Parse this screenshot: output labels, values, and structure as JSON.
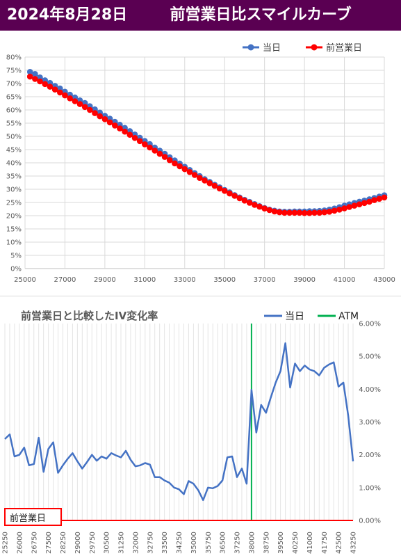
{
  "header": {
    "date": "2024年8月28日",
    "title": "前営業日比スマイルカーブ"
  },
  "colors": {
    "header_bg": "#5a0052",
    "today": "#4472c4",
    "prev": "#ff0000",
    "change": "#4472c4",
    "atm": "#00b050",
    "grid": "#d9d9d9"
  },
  "chart_data": [
    {
      "type": "line",
      "title": "",
      "legend_position": "top-right",
      "grid": true,
      "xlim": [
        25000,
        43000
      ],
      "ylim": [
        0,
        80
      ],
      "x_ticks": [
        "25000",
        "27000",
        "29000",
        "31000",
        "33000",
        "35000",
        "37000",
        "39000",
        "41000",
        "43000"
      ],
      "y_ticks": [
        "0%",
        "5%",
        "10%",
        "15%",
        "20%",
        "25%",
        "30%",
        "35%",
        "40%",
        "45%",
        "50%",
        "55%",
        "60%",
        "65%",
        "70%",
        "75%",
        "80%"
      ],
      "series": [
        {
          "name": "当日",
          "x": [
            25250,
            25500,
            25750,
            26000,
            26250,
            26500,
            26750,
            27000,
            27250,
            27500,
            27750,
            28000,
            28250,
            28500,
            28750,
            29000,
            29250,
            29500,
            29750,
            30000,
            30250,
            30500,
            30750,
            31000,
            31250,
            31500,
            31750,
            32000,
            32250,
            32500,
            32750,
            33000,
            33250,
            33500,
            33750,
            34000,
            34250,
            34500,
            34750,
            35000,
            35250,
            35500,
            35750,
            36000,
            36250,
            36500,
            36750,
            37000,
            37250,
            37500,
            37750,
            38000,
            38250,
            38500,
            38750,
            39000,
            39250,
            39500,
            39750,
            40000,
            40250,
            40500,
            40750,
            41000,
            41250,
            41500,
            41750,
            42000,
            42250,
            42500,
            42750,
            43000
          ],
          "y": [
            74.4,
            73.6,
            72.3,
            71.2,
            70.2,
            69.1,
            68.1,
            66.9,
            65.8,
            64.7,
            63.6,
            62.6,
            61.4,
            60.2,
            59.0,
            57.8,
            56.7,
            55.5,
            54.4,
            53.2,
            52.0,
            50.7,
            49.5,
            48.3,
            47.1,
            45.8,
            44.6,
            43.4,
            42.1,
            40.9,
            39.7,
            38.5,
            37.3,
            36.1,
            35.0,
            33.8,
            32.8,
            31.7,
            30.7,
            29.7,
            28.8,
            27.8,
            26.9,
            26.0,
            25.2,
            24.4,
            23.6,
            22.9,
            22.3,
            21.9,
            21.6,
            21.5,
            21.5,
            21.6,
            21.6,
            21.6,
            21.7,
            21.7,
            21.8,
            22.0,
            22.3,
            22.7,
            23.2,
            23.8,
            24.3,
            24.8,
            25.3,
            25.7,
            26.2,
            26.7,
            27.2,
            27.7
          ]
        },
        {
          "name": "前営業日",
          "x": [
            25250,
            25500,
            25750,
            26000,
            26250,
            26500,
            26750,
            27000,
            27250,
            27500,
            27750,
            28000,
            28250,
            28500,
            28750,
            29000,
            29250,
            29500,
            29750,
            30000,
            30250,
            30500,
            30750,
            31000,
            31250,
            31500,
            31750,
            32000,
            32250,
            32500,
            32750,
            33000,
            33250,
            33500,
            33750,
            34000,
            34250,
            34500,
            34750,
            35000,
            35250,
            35500,
            35750,
            36000,
            36250,
            36500,
            36750,
            37000,
            37250,
            37500,
            37750,
            38000,
            38250,
            38500,
            38750,
            39000,
            39250,
            39500,
            39750,
            40000,
            40250,
            40500,
            40750,
            41000,
            41250,
            41500,
            41750,
            42000,
            42250,
            42500,
            42750,
            43000
          ],
          "y": [
            72.6,
            71.7,
            70.8,
            69.8,
            68.8,
            67.7,
            66.6,
            65.5,
            64.4,
            63.3,
            62.2,
            61.1,
            60.0,
            58.8,
            57.6,
            56.5,
            55.3,
            54.1,
            53.0,
            51.8,
            50.6,
            49.4,
            48.2,
            47.0,
            45.8,
            44.6,
            43.4,
            42.2,
            41.0,
            39.8,
            38.7,
            37.6,
            36.5,
            35.4,
            34.3,
            33.3,
            32.3,
            31.3,
            30.3,
            29.4,
            28.4,
            27.5,
            26.6,
            25.7,
            24.9,
            24.1,
            23.4,
            22.7,
            22.1,
            21.6,
            21.3,
            21.1,
            21.1,
            21.1,
            21.1,
            21.0,
            21.0,
            21.1,
            21.1,
            21.3,
            21.5,
            21.9,
            22.3,
            22.8,
            23.3,
            23.8,
            24.3,
            24.8,
            25.3,
            25.9,
            26.4,
            26.9
          ]
        }
      ]
    },
    {
      "type": "line",
      "title": "前営業日と比較したIV変化率",
      "legend_position": "top-right",
      "grid": true,
      "ylim": [
        0,
        6
      ],
      "y_ticks": [
        "0.00%",
        "1.00%",
        "2.00%",
        "3.00%",
        "4.00%",
        "5.00%",
        "6.00%"
      ],
      "x_ticks": [
        "25250",
        "26000",
        "26750",
        "27500",
        "28250",
        "29000",
        "29750",
        "30500",
        "31250",
        "32000",
        "32750",
        "33500",
        "34250",
        "35000",
        "35750",
        "36500",
        "37250",
        "38000",
        "38750",
        "39500",
        "40250",
        "41000",
        "41750",
        "42500",
        "43250"
      ],
      "atm_strike": 38000,
      "baseline_label": "前営業日",
      "series": [
        {
          "name": "当日",
          "x": [
            25250,
            25500,
            25750,
            26000,
            26250,
            26500,
            26750,
            27000,
            27250,
            27500,
            27750,
            28000,
            28250,
            28500,
            28750,
            29000,
            29250,
            29500,
            29750,
            30000,
            30250,
            30500,
            30750,
            31000,
            31250,
            31500,
            31750,
            32000,
            32250,
            32500,
            32750,
            33000,
            33250,
            33500,
            33750,
            34000,
            34250,
            34500,
            34750,
            35000,
            35250,
            35500,
            35750,
            36000,
            36250,
            36500,
            36750,
            37000,
            37250,
            37500,
            37750,
            38000,
            38250,
            38500,
            38750,
            39000,
            39250,
            39500,
            39750,
            40000,
            40250,
            40500,
            40750,
            41000,
            41250,
            41500,
            41750,
            42000,
            42250,
            42500,
            42750,
            43000,
            43250
          ],
          "y": [
            2.48,
            2.62,
            1.95,
            2.0,
            2.22,
            1.68,
            1.72,
            2.52,
            1.48,
            2.18,
            2.38,
            1.45,
            1.68,
            1.88,
            2.05,
            1.8,
            1.58,
            1.78,
            2.0,
            1.82,
            1.95,
            1.88,
            2.05,
            1.98,
            1.92,
            2.12,
            1.85,
            1.65,
            1.68,
            1.75,
            1.7,
            1.32,
            1.32,
            1.22,
            1.15,
            1.0,
            0.95,
            0.8,
            1.2,
            1.12,
            0.92,
            0.62,
            1.0,
            0.98,
            1.05,
            1.22,
            1.92,
            1.95,
            1.32,
            1.58,
            1.12,
            3.98,
            2.68,
            3.52,
            3.28,
            3.75,
            4.2,
            4.55,
            5.4,
            4.05,
            4.78,
            4.55,
            4.72,
            4.6,
            4.55,
            4.42,
            4.65,
            4.75,
            4.82,
            4.08,
            4.2,
            3.2,
            1.8
          ]
        },
        {
          "name": "前営業日",
          "x": [
            25250,
            43250
          ],
          "y": [
            0,
            0
          ]
        }
      ]
    }
  ]
}
